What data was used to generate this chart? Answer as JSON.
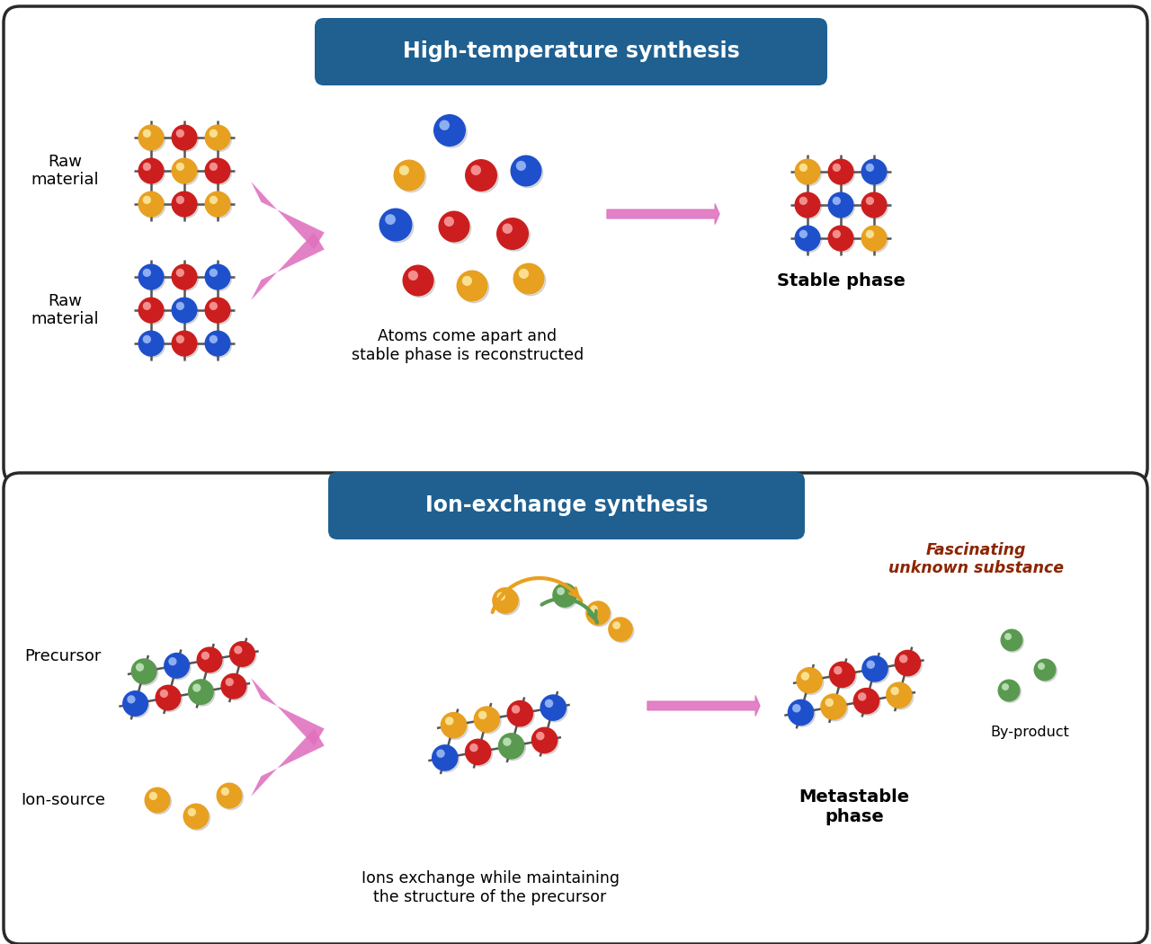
{
  "fig_width": 12.8,
  "fig_height": 10.5,
  "bg_color": "#ffffff",
  "panel_bg": "#ffffff",
  "panel_border": "#2a2a2a",
  "title1": "High-temperature synthesis",
  "title2": "Ion-exchange synthesis",
  "title_bg": "#1f6090",
  "title_color": "#ffffff",
  "color_orange": "#E8A020",
  "color_red": "#CC1E1E",
  "color_blue": "#1E50CC",
  "color_green": "#5A9A50",
  "color_pink": "#E070C0",
  "color_brown_text": "#8B2500",
  "label_raw1": "Raw\nmaterial",
  "label_raw2": "Raw\nmaterial",
  "label_precursor": "Precursor",
  "label_ion_source": "Ion-source",
  "label_stable": "Stable phase",
  "label_metastable": "Metastable\nphase",
  "label_byproduct": "By-product",
  "label_fascinating": "Fascinating\nunknown substance",
  "label_atoms_apart": "Atoms come apart and\nstable phase is reconstructed",
  "label_ions_exchange": "Ions exchange while maintaining\nthe structure of the precursor"
}
